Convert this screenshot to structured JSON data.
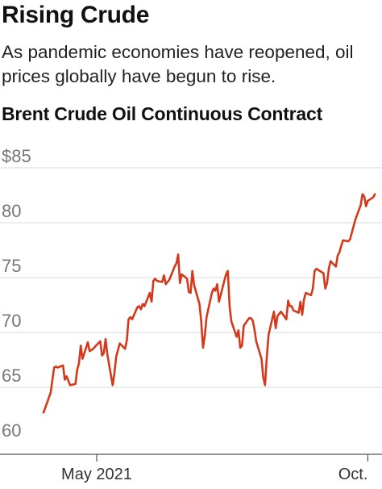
{
  "header": {
    "title": "Rising Crude",
    "subtitle": "As pandemic economies have reopened, oil prices globally have begun to rise."
  },
  "chart_data": {
    "type": "line",
    "title": "Brent Crude Oil Continuous Contract",
    "xlabel": "",
    "ylabel": "",
    "ylim": [
      60,
      85
    ],
    "yticks": [
      {
        "value": 85,
        "label": "$85"
      },
      {
        "value": 80,
        "label": "80"
      },
      {
        "value": 75,
        "label": "75"
      },
      {
        "value": 70,
        "label": "70"
      },
      {
        "value": 65,
        "label": "65"
      },
      {
        "value": 60,
        "label": "60"
      }
    ],
    "xticks": [
      {
        "value": "2021-05-01",
        "label": "May 2021"
      },
      {
        "value": "2021-10-01",
        "label": "Oct."
      }
    ],
    "xlim": [
      "2021-04-01",
      "2021-10-09"
    ],
    "grid": true,
    "line_color": "#d4391c",
    "series": [
      {
        "name": "",
        "points": [
          [
            "2021-04-01",
            62.7
          ],
          [
            "2021-04-05",
            64.5
          ],
          [
            "2021-04-07",
            66.8
          ],
          [
            "2021-04-08",
            66.9
          ],
          [
            "2021-04-09",
            66.8
          ],
          [
            "2021-04-12",
            67.0
          ],
          [
            "2021-04-13",
            65.7
          ],
          [
            "2021-04-14",
            66.0
          ],
          [
            "2021-04-15",
            65.6
          ],
          [
            "2021-04-16",
            65.2
          ],
          [
            "2021-04-19",
            65.3
          ],
          [
            "2021-04-20",
            66.6
          ],
          [
            "2021-04-21",
            67.2
          ],
          [
            "2021-04-22",
            68.8
          ],
          [
            "2021-04-23",
            67.6
          ],
          [
            "2021-04-26",
            69.1
          ],
          [
            "2021-04-27",
            68.3
          ],
          [
            "2021-04-28",
            68.4
          ],
          [
            "2021-04-29",
            68.5
          ],
          [
            "2021-04-30",
            68.7
          ],
          [
            "2021-05-03",
            69.2
          ],
          [
            "2021-05-04",
            67.9
          ],
          [
            "2021-05-05",
            68.1
          ],
          [
            "2021-05-06",
            69.4
          ],
          [
            "2021-05-07",
            68.0
          ],
          [
            "2021-05-10",
            65.2
          ],
          [
            "2021-05-11",
            66.3
          ],
          [
            "2021-05-12",
            67.8
          ],
          [
            "2021-05-13",
            68.4
          ],
          [
            "2021-05-14",
            69.0
          ],
          [
            "2021-05-17",
            68.5
          ],
          [
            "2021-05-18",
            69.3
          ],
          [
            "2021-05-19",
            71.2
          ],
          [
            "2021-05-20",
            71.4
          ],
          [
            "2021-05-21",
            71.2
          ],
          [
            "2021-05-24",
            72.3
          ],
          [
            "2021-05-25",
            72.4
          ],
          [
            "2021-05-26",
            72.1
          ],
          [
            "2021-05-27",
            72.6
          ],
          [
            "2021-05-28",
            72.4
          ],
          [
            "2021-05-31",
            73.6
          ],
          [
            "2021-06-01",
            72.8
          ],
          [
            "2021-06-02",
            74.7
          ],
          [
            "2021-06-03",
            74.9
          ],
          [
            "2021-06-04",
            74.7
          ],
          [
            "2021-06-07",
            74.6
          ],
          [
            "2021-06-08",
            75.2
          ],
          [
            "2021-06-09",
            74.4
          ],
          [
            "2021-06-10",
            74.6
          ],
          [
            "2021-06-11",
            74.8
          ],
          [
            "2021-06-14",
            76.0
          ],
          [
            "2021-06-15",
            76.3
          ],
          [
            "2021-06-16",
            77.1
          ],
          [
            "2021-06-17",
            74.5
          ],
          [
            "2021-06-18",
            75.3
          ],
          [
            "2021-06-21",
            74.9
          ],
          [
            "2021-06-22",
            73.7
          ],
          [
            "2021-06-23",
            73.6
          ],
          [
            "2021-06-24",
            75.6
          ],
          [
            "2021-06-25",
            74.3
          ],
          [
            "2021-06-28",
            72.6
          ],
          [
            "2021-06-29",
            71.0
          ],
          [
            "2021-06-30",
            68.6
          ],
          [
            "2021-07-01",
            69.7
          ],
          [
            "2021-07-02",
            71.4
          ],
          [
            "2021-07-05",
            73.6
          ],
          [
            "2021-07-06",
            74.0
          ],
          [
            "2021-07-07",
            73.8
          ],
          [
            "2021-07-08",
            74.4
          ],
          [
            "2021-07-09",
            72.8
          ],
          [
            "2021-07-12",
            74.7
          ],
          [
            "2021-07-13",
            75.3
          ],
          [
            "2021-07-14",
            75.6
          ],
          [
            "2021-07-15",
            72.4
          ],
          [
            "2021-07-16",
            71.0
          ],
          [
            "2021-07-19",
            69.6
          ],
          [
            "2021-07-20",
            70.2
          ],
          [
            "2021-07-21",
            68.6
          ],
          [
            "2021-07-22",
            68.8
          ],
          [
            "2021-07-23",
            70.6
          ],
          [
            "2021-07-26",
            71.3
          ],
          [
            "2021-07-27",
            71.3
          ],
          [
            "2021-07-28",
            71.1
          ],
          [
            "2021-07-29",
            70.3
          ],
          [
            "2021-07-30",
            69.2
          ],
          [
            "2021-08-02",
            67.6
          ],
          [
            "2021-08-03",
            65.9
          ],
          [
            "2021-08-04",
            65.2
          ],
          [
            "2021-08-05",
            67.8
          ],
          [
            "2021-08-06",
            69.8
          ],
          [
            "2021-08-09",
            71.9
          ],
          [
            "2021-08-10",
            70.4
          ],
          [
            "2021-08-11",
            71.5
          ],
          [
            "2021-08-12",
            71.7
          ],
          [
            "2021-08-13",
            71.9
          ],
          [
            "2021-08-16",
            71.2
          ],
          [
            "2021-08-17",
            72.9
          ],
          [
            "2021-08-18",
            72.4
          ],
          [
            "2021-08-19",
            72.4
          ],
          [
            "2021-08-20",
            72.0
          ],
          [
            "2021-08-23",
            71.8
          ],
          [
            "2021-08-24",
            72.8
          ],
          [
            "2021-08-25",
            71.6
          ],
          [
            "2021-08-26",
            73.0
          ],
          [
            "2021-08-27",
            73.6
          ],
          [
            "2021-08-30",
            73.4
          ],
          [
            "2021-08-31",
            74.0
          ],
          [
            "2021-09-01",
            75.6
          ],
          [
            "2021-09-02",
            75.8
          ],
          [
            "2021-09-03",
            75.7
          ],
          [
            "2021-09-06",
            75.4
          ],
          [
            "2021-09-07",
            74.0
          ],
          [
            "2021-09-08",
            74.5
          ],
          [
            "2021-09-09",
            75.8
          ],
          [
            "2021-09-10",
            76.5
          ],
          [
            "2021-09-13",
            76.0
          ],
          [
            "2021-09-14",
            77.0
          ],
          [
            "2021-09-15",
            77.3
          ],
          [
            "2021-09-16",
            77.9
          ],
          [
            "2021-09-17",
            78.4
          ],
          [
            "2021-09-20",
            78.3
          ],
          [
            "2021-09-21",
            78.5
          ],
          [
            "2021-09-22",
            79.1
          ],
          [
            "2021-09-23",
            79.7
          ],
          [
            "2021-09-24",
            80.3
          ],
          [
            "2021-09-27",
            81.6
          ],
          [
            "2021-09-28",
            82.6
          ],
          [
            "2021-09-29",
            82.4
          ],
          [
            "2021-09-30",
            81.5
          ],
          [
            "2021-10-01",
            82.0
          ],
          [
            "2021-10-04",
            82.3
          ],
          [
            "2021-10-05",
            82.6
          ]
        ]
      }
    ]
  }
}
